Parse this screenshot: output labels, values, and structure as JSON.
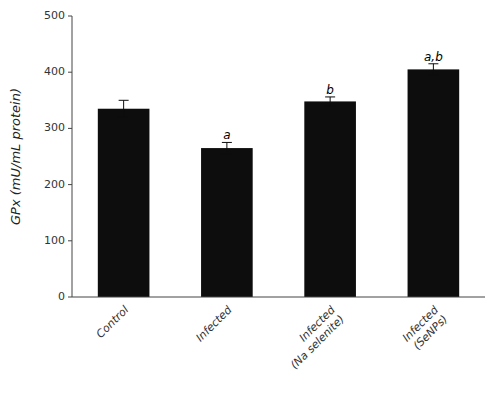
{
  "chart_data": {
    "type": "bar",
    "categories": [
      "Control",
      "Infected",
      "Infected\n(Na selenite)",
      "Infected\n(SeNPs)"
    ],
    "values": [
      335,
      265,
      348,
      405
    ],
    "errors": [
      15,
      10,
      8,
      10
    ],
    "color": "#0d0d0d",
    "ylabel": "GPx (mU/mL protein)",
    "ylim": [
      0,
      500
    ],
    "yticks": [
      0,
      100,
      200,
      300,
      400,
      500
    ],
    "annotations": [
      {
        "text": "a",
        "x": 1,
        "y": 277
      },
      {
        "text": "b",
        "x": 2,
        "y": 358
      },
      {
        "text": "a,b",
        "x": 3,
        "y": 417
      }
    ],
    "grid": false
  }
}
